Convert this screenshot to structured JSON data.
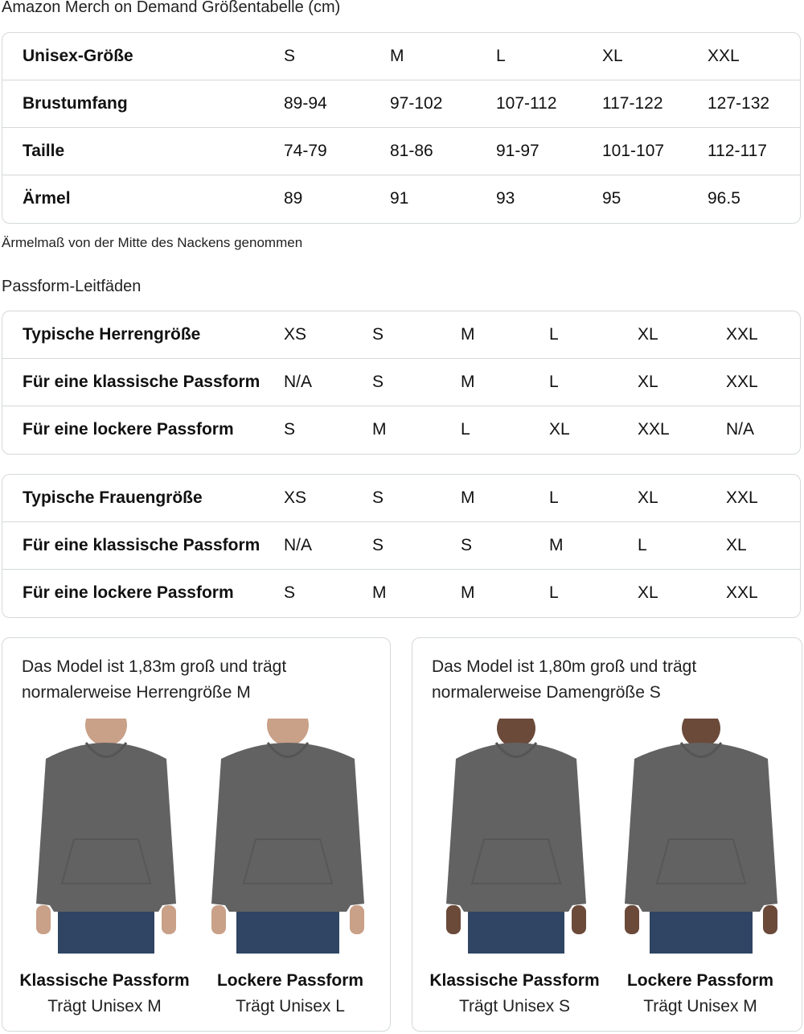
{
  "title": "Amazon Merch on Demand Größentabelle (cm)",
  "size_table": {
    "rows": [
      {
        "label": "Unisex-Größe",
        "values": [
          "S",
          "M",
          "L",
          "XL",
          "XXL"
        ]
      },
      {
        "label": "Brustumfang",
        "values": [
          "89-94",
          "97-102",
          "107-112",
          "117-122",
          "127-132"
        ]
      },
      {
        "label": "Taille",
        "values": [
          "74-79",
          "81-86",
          "91-97",
          "101-107",
          "112-117"
        ]
      },
      {
        "label": "Ärmel",
        "values": [
          "89",
          "91",
          "93",
          "95",
          "96.5"
        ]
      }
    ]
  },
  "note": "Ärmelmaß von der Mitte des Nackens genommen",
  "fit_title": "Passform-Leitfäden",
  "men_fit": {
    "rows": [
      {
        "label": "Typische Herrengröße",
        "values": [
          "XS",
          "S",
          "M",
          "L",
          "XL",
          "XXL"
        ]
      },
      {
        "label": "Für eine klassische Passform",
        "values": [
          "N/A",
          "S",
          "M",
          "L",
          "XL",
          "XXL"
        ]
      },
      {
        "label": "Für eine lockere Passform",
        "values": [
          "S",
          "M",
          "L",
          "XL",
          "XXL",
          "N/A"
        ]
      }
    ]
  },
  "women_fit": {
    "rows": [
      {
        "label": "Typische Frauengröße",
        "values": [
          "XS",
          "S",
          "M",
          "L",
          "XL",
          "XXL"
        ]
      },
      {
        "label": "Für eine klassische Passform",
        "values": [
          "N/A",
          "S",
          "S",
          "M",
          "L",
          "XL"
        ]
      },
      {
        "label": "Für eine lockere Passform",
        "values": [
          "S",
          "M",
          "M",
          "L",
          "XL",
          "XXL"
        ]
      }
    ]
  },
  "cards": [
    {
      "desc": [
        "Das Model ist 1,83m groß und trägt",
        "normalerweise Herrengröße M"
      ],
      "figures": [
        {
          "title": "Klassische Passform",
          "sub": "Trägt Unisex M"
        },
        {
          "title": "Lockere Passform",
          "sub": "Trägt Unisex L"
        }
      ]
    },
    {
      "desc": [
        "Das Model ist 1,80m groß und trägt",
        "normalerweise Damengröße S"
      ],
      "figures": [
        {
          "title": "Klassische Passform",
          "sub": "Trägt Unisex S"
        },
        {
          "title": "Lockere Passform",
          "sub": "Trägt Unisex M"
        }
      ]
    }
  ],
  "colors": {
    "border": "#d5d9d9",
    "hoodie": "#626262",
    "jeans": "#2f4563",
    "skin": "#c9a088"
  }
}
